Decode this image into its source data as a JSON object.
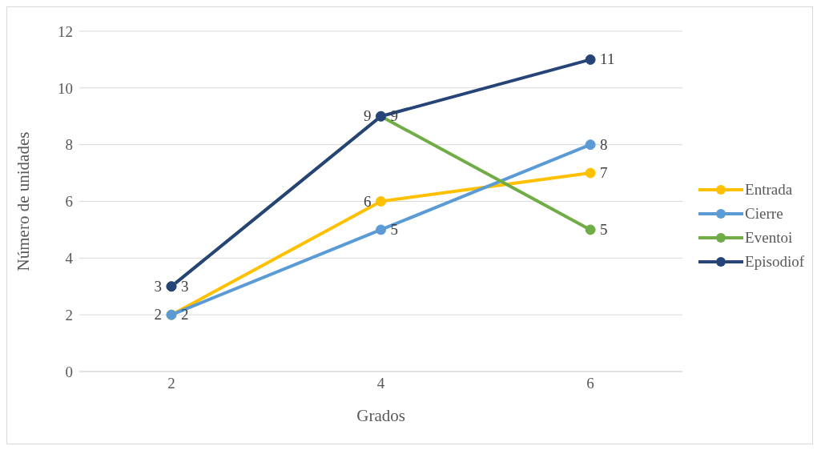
{
  "chart_data": {
    "type": "line",
    "xlabel": "Grados",
    "ylabel": "Número de unidades",
    "categories": [
      "2",
      "4",
      "6"
    ],
    "series": [
      {
        "name": "Entrada",
        "color": "#ffc000",
        "values": [
          2,
          6,
          7
        ]
      },
      {
        "name": "Cierre",
        "color": "#5b9bd5",
        "values": [
          2,
          5,
          8
        ]
      },
      {
        "name": "Eventoi",
        "color": "#70ad47",
        "values": [
          3,
          9,
          5
        ]
      },
      {
        "name": "Episodiof",
        "color": "#264478",
        "values": [
          3,
          9,
          11
        ]
      }
    ],
    "ylim": [
      0,
      12
    ],
    "yticks": [
      0,
      2,
      4,
      6,
      8,
      10,
      12
    ],
    "grid": "y",
    "legend": "right",
    "marker": "circle",
    "line_style": "solid",
    "data_labels": true
  }
}
